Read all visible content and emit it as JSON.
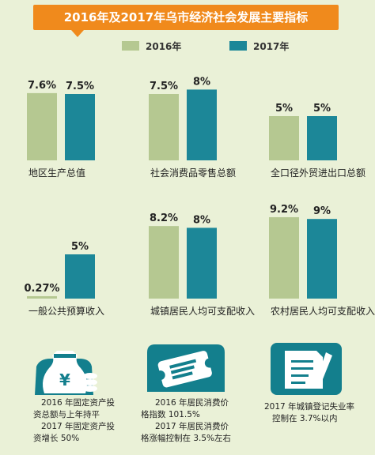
{
  "title": "2016年及2017年乌市经济社会发展主要指标",
  "colors": {
    "y2016": "#b5c891",
    "y2017": "#1c8798",
    "banner": "#f08a1c",
    "icon": "#137f8d"
  },
  "chart_data": {
    "type": "bar",
    "legend": [
      "2016年",
      "2017年"
    ],
    "legend_position": "top",
    "grid": false,
    "panels": [
      {
        "category": "地区生产总值",
        "values": [
          7.6,
          7.5
        ],
        "labels": [
          "7.6%",
          "7.5%"
        ]
      },
      {
        "category": "社会消费品零售总额",
        "values": [
          7.5,
          8
        ],
        "labels": [
          "7.5%",
          "8%"
        ]
      },
      {
        "category": "全口径外贸进出口总额",
        "values": [
          5,
          5
        ],
        "labels": [
          "5%",
          "5%"
        ]
      },
      {
        "category": "一般公共预算收入",
        "values": [
          0.27,
          5
        ],
        "labels": [
          "0.27%",
          "5%"
        ]
      },
      {
        "category": "城镇居民人均可支配收入",
        "values": [
          8.2,
          8
        ],
        "labels": [
          "8.2%",
          "8%"
        ]
      },
      {
        "category": "农村居民人均可支配收入",
        "values": [
          9.2,
          9
        ],
        "labels": [
          "9.2%",
          "9%"
        ]
      }
    ]
  },
  "info": [
    {
      "icon": "money-bag-icon",
      "lines": [
        "2016 年固定资产投",
        "资总额与上年持平",
        "2017 年固定资产投",
        "资增长 50%"
      ]
    },
    {
      "icon": "ticket-icon",
      "lines": [
        "2016 年居民消费价",
        "格指数 101.5%",
        "2017 年居民消费价",
        "格涨幅控制在 3.5%左右"
      ]
    },
    {
      "icon": "document-pen-icon",
      "lines": [
        "2017 年城镇登记失业率",
        "控制在 3.7%以内"
      ]
    }
  ]
}
